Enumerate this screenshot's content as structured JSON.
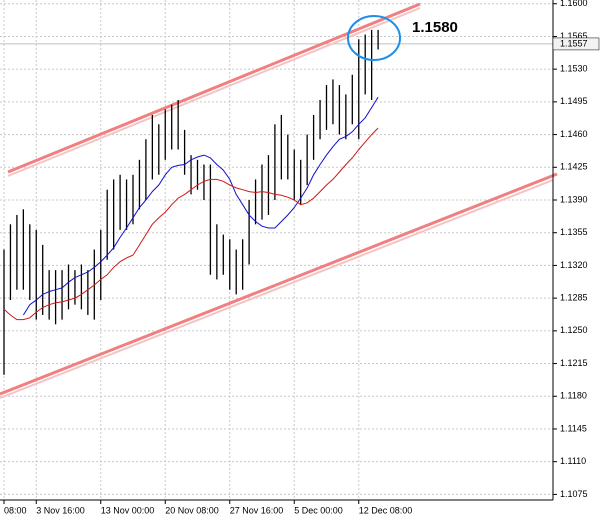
{
  "chart_data": {
    "type": "range-bar",
    "categories": [
      "08:00",
      null,
      null,
      null,
      null,
      "3 Nov 16:00",
      null,
      null,
      null,
      null,
      null,
      null,
      null,
      null,
      null,
      "13 Nov 00:00",
      null,
      null,
      null,
      null,
      null,
      null,
      null,
      null,
      null,
      "20 Nov 08:00",
      null,
      null,
      null,
      null,
      null,
      null,
      null,
      null,
      null,
      "27 Nov 16:00",
      null,
      null,
      null,
      null,
      null,
      null,
      null,
      null,
      null,
      "5 Dec 00:00",
      null,
      null,
      null,
      null,
      null,
      null,
      null,
      null,
      null,
      "12 Dec 08:00",
      null,
      null,
      null
    ],
    "high": [
      1.1337,
      1.1364,
      1.1374,
      1.138,
      1.1364,
      1.1358,
      1.1342,
      1.1315,
      1.1315,
      1.1315,
      1.1321,
      1.1315,
      1.1321,
      1.1315,
      1.1337,
      1.1358,
      1.1401,
      1.1412,
      1.1417,
      1.1412,
      1.1417,
      1.1433,
      1.1455,
      1.1481,
      1.1471,
      1.1487,
      1.1492,
      1.1497,
      1.1465,
      1.1438,
      1.1433,
      1.1428,
      1.1428,
      1.1364,
      1.1353,
      1.1348,
      1.1337,
      1.1348,
      1.139,
      1.1412,
      1.1428,
      1.1438,
      1.1471,
      1.1481,
      1.146,
      1.1444,
      1.1433,
      1.146,
      1.1481,
      1.1497,
      1.1513,
      1.1519,
      1.1513,
      1.1503,
      1.1524,
      1.1562,
      1.1567,
      1.1572,
      1.1572
    ],
    "low": [
      1.1203,
      1.1283,
      1.1294,
      1.1294,
      1.1283,
      1.1262,
      1.1267,
      1.1262,
      1.1257,
      1.1262,
      1.1273,
      1.1278,
      1.1273,
      1.1267,
      1.1262,
      1.1283,
      1.1326,
      1.1337,
      1.1358,
      1.1358,
      1.1364,
      1.138,
      1.139,
      1.1412,
      1.1417,
      1.1433,
      1.1444,
      1.1444,
      1.1417,
      1.1396,
      1.1401,
      1.139,
      1.131,
      1.1305,
      1.131,
      1.1294,
      1.1289,
      1.1294,
      1.1321,
      1.1364,
      1.1369,
      1.1374,
      1.139,
      1.1412,
      1.1412,
      1.139,
      1.1385,
      1.1406,
      1.1433,
      1.1455,
      1.1465,
      1.1471,
      1.146,
      1.1455,
      1.1471,
      1.1455,
      1.1503,
      1.1497,
      1.1551
    ],
    "bar_color": "#000000",
    "moving_averages": [
      {
        "color": "#1010d0",
        "values": [
          null,
          null,
          null,
          1.1267,
          1.1278,
          1.1283,
          1.1289,
          1.1292,
          1.1294,
          1.1296,
          1.1302,
          1.1307,
          1.131,
          1.1313,
          1.1318,
          1.1324,
          1.1331,
          1.1339,
          1.135,
          1.136,
          1.1371,
          1.1382,
          1.139,
          1.1399,
          1.1406,
          1.1417,
          1.1425,
          1.1427,
          1.1428,
          1.1433,
          1.1436,
          1.1438,
          1.1435,
          1.1428,
          1.1422,
          1.1412,
          1.1396,
          1.1385,
          1.1374,
          1.1367,
          1.1362,
          1.136,
          1.136,
          1.1367,
          1.1374,
          1.1382,
          1.1392,
          1.1403,
          1.1417,
          1.1428,
          1.1438,
          1.1447,
          1.1455,
          1.1458,
          1.1463,
          1.1471,
          1.1478,
          1.1489,
          1.15
        ]
      },
      {
        "color": "#d01818",
        "values": [
          1.1273,
          1.1267,
          1.1262,
          1.1262,
          1.1264,
          1.127,
          1.1275,
          1.1278,
          1.128,
          1.1281,
          1.1283,
          1.1285,
          1.1289,
          1.1294,
          1.1299,
          1.1305,
          1.131,
          1.1318,
          1.1324,
          1.1328,
          1.1331,
          1.1342,
          1.1353,
          1.1364,
          1.1371,
          1.1377,
          1.1385,
          1.1392,
          1.1396,
          1.1401,
          1.1406,
          1.141,
          1.1412,
          1.1412,
          1.141,
          1.1406,
          1.1403,
          1.1401,
          1.1399,
          1.1398,
          1.1399,
          1.1398,
          1.1396,
          1.1395,
          1.1393,
          1.139,
          1.1385,
          1.1387,
          1.1392,
          1.1399,
          1.1406,
          1.1412,
          1.142,
          1.1428,
          1.1435,
          1.1444,
          1.1452,
          1.146,
          1.1467
        ]
      }
    ],
    "last_price": 1.1557,
    "annotation": "1.1580",
    "annotation_color": "#1e8fe8",
    "ylim": [
      1.1069,
      1.1604
    ],
    "yticks": [
      {
        "value": 1.16,
        "label": "1.1600"
      },
      1.1565,
      {
        "value": 1.153,
        "label": "1.1530"
      },
      1.1495,
      {
        "value": 1.146,
        "label": "1.1460"
      },
      1.1425,
      {
        "value": 1.139,
        "label": "1.1390"
      },
      1.1355,
      {
        "value": 1.132,
        "label": "1.1320"
      },
      1.1285,
      {
        "value": 1.125,
        "label": "1.1250"
      },
      1.1215,
      {
        "value": 1.118,
        "label": "1.1180"
      },
      1.1145,
      {
        "value": 1.111,
        "label": "1.1110"
      },
      1.1075
    ],
    "grid": true,
    "y_axis_side": "right"
  }
}
